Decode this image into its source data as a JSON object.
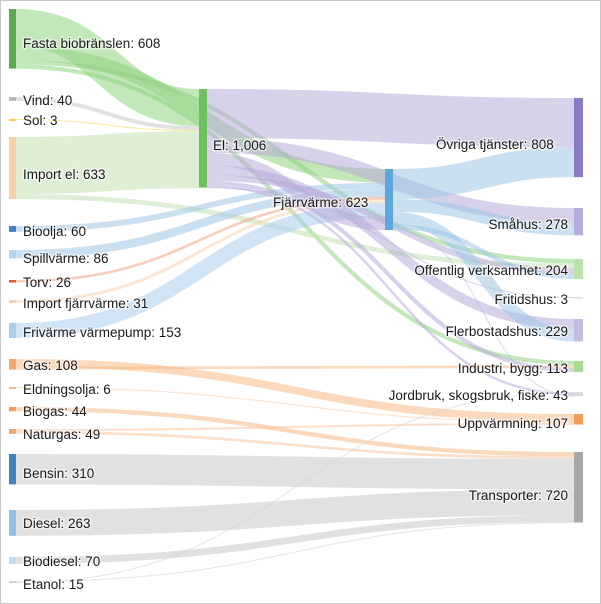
{
  "chart_data": {
    "type": "sankey",
    "units": "TWh",
    "nodes": [
      {
        "id": "fasta",
        "label": "Fasta biobränslen: 608",
        "value": 608,
        "color": "#5aaa4f",
        "flow_color": "#8fd37f"
      },
      {
        "id": "vind",
        "label": "Vind: 40",
        "value": 40,
        "color": "#b9b9b9",
        "flow_color": "#c8c8c8"
      },
      {
        "id": "sol",
        "label": "Sol: 3",
        "value": 3,
        "color": "#f6d23c",
        "flow_color": "#f6d23c"
      },
      {
        "id": "importel",
        "label": "Import el: 633",
        "value": 633,
        "color": "#f8cfa6",
        "flow_color": "#c3e2b5"
      },
      {
        "id": "bioolja",
        "label": "Bioolja: 60",
        "value": 60,
        "color": "#3f84c2",
        "flow_color": "#9ec6e6"
      },
      {
        "id": "spill",
        "label": "Spillvärme: 86",
        "value": 86,
        "color": "#b4d3ee",
        "flow_color": "#9ec6e6"
      },
      {
        "id": "torv",
        "label": "Torv: 26",
        "value": 26,
        "color": "#e25b2c",
        "flow_color": "#f2a27f"
      },
      {
        "id": "importfj",
        "label": "Import fjärrvärme: 31",
        "value": 31,
        "color": "#f8d4ae",
        "flow_color": "#f8d4ae"
      },
      {
        "id": "friv",
        "label": "Frivärme värmepump: 153",
        "value": 153,
        "color": "#a9cdec",
        "flow_color": "#a9cdec"
      },
      {
        "id": "gas",
        "label": "Gas: 108",
        "value": 108,
        "color": "#f4a86c",
        "flow_color": "#f7b987"
      },
      {
        "id": "eldning",
        "label": "Eldningsolja: 6",
        "value": 6,
        "color": "#f4b98a",
        "flow_color": "#f7c9a2"
      },
      {
        "id": "biogas",
        "label": "Biogas: 44",
        "value": 44,
        "color": "#ee9f66",
        "flow_color": "#f7b987"
      },
      {
        "id": "naturgas",
        "label": "Naturgas: 49",
        "value": 49,
        "color": "#f0a56e",
        "flow_color": "#f7c4a0"
      },
      {
        "id": "bensin",
        "label": "Bensin: 310",
        "value": 310,
        "color": "#3f84c2",
        "flow_color": "#c9c9c9"
      },
      {
        "id": "diesel",
        "label": "Diesel: 263",
        "value": 263,
        "color": "#8ec0e8",
        "flow_color": "#c9c9c9"
      },
      {
        "id": "biodiesel",
        "label": "Biodiesel: 70",
        "value": 70,
        "color": "#c4dbf0",
        "flow_color": "#c9c9c9"
      },
      {
        "id": "etanol",
        "label": "Etanol: 15",
        "value": 15,
        "color": "#cfcfcf",
        "flow_color": "#cfcfcf"
      },
      {
        "id": "el",
        "label": "El: 1,006",
        "value": 1006,
        "color": "#6cc05e",
        "flow_color": "#b8abd9"
      },
      {
        "id": "fjarr",
        "label": "Fjärrvärme: 623",
        "value": 623,
        "color": "#5fa7da",
        "flow_color": "#9ec6e6"
      },
      {
        "id": "ovriga",
        "label": "Övriga tjänster: 808",
        "value": 808,
        "color": "#8a7ac6",
        "flow_color": ""
      },
      {
        "id": "smahus",
        "label": "Småhus: 278",
        "value": 278,
        "color": "#b7abdc",
        "flow_color": ""
      },
      {
        "id": "offentlig",
        "label": "Offentlig verksamhet: 204",
        "value": 204,
        "color": "#b9e3a8",
        "flow_color": ""
      },
      {
        "id": "fritid",
        "label": "Fritidshus: 3",
        "value": 3,
        "color": "#e6e1f3",
        "flow_color": ""
      },
      {
        "id": "flerbo",
        "label": "Flerbostadshus: 229",
        "value": 229,
        "color": "#c4bbe2",
        "flow_color": ""
      },
      {
        "id": "industri",
        "label": "Industri, bygg: 113",
        "value": 113,
        "color": "#a6dc8f",
        "flow_color": ""
      },
      {
        "id": "jordbruk",
        "label": "Jordbruk, skogsbruk, fiske: 43",
        "value": 43,
        "color": "#dcdcdc",
        "flow_color": ""
      },
      {
        "id": "uppv",
        "label": "Uppvärmning: 107",
        "value": 107,
        "color": "#f39c55",
        "flow_color": ""
      },
      {
        "id": "transport",
        "label": "Transporter: 720",
        "value": 720,
        "color": "#a8a8a8",
        "flow_color": ""
      }
    ],
    "links": [
      {
        "source": "fasta",
        "target": "el",
        "value": 380
      },
      {
        "source": "fasta",
        "target": "fjarr",
        "value": 140
      },
      {
        "source": "fasta",
        "target": "offentlig",
        "value": 45
      },
      {
        "source": "fasta",
        "target": "industri",
        "value": 43
      },
      {
        "source": "vind",
        "target": "el",
        "value": 40
      },
      {
        "source": "sol",
        "target": "el",
        "value": 3
      },
      {
        "source": "importel",
        "target": "el",
        "value": 583
      },
      {
        "source": "importel",
        "target": "offentlig",
        "value": 50
      },
      {
        "source": "bioolja",
        "target": "fjarr",
        "value": 60
      },
      {
        "source": "spill",
        "target": "fjarr",
        "value": 86
      },
      {
        "source": "torv",
        "target": "fjarr",
        "value": 26
      },
      {
        "source": "importfj",
        "target": "fjarr",
        "value": 31
      },
      {
        "source": "friv",
        "target": "fjarr",
        "value": 153
      },
      {
        "source": "gas",
        "target": "uppv",
        "value": 80
      },
      {
        "source": "gas",
        "target": "industri",
        "value": 28
      },
      {
        "source": "eldning",
        "target": "uppv",
        "value": 6
      },
      {
        "source": "biogas",
        "target": "transport",
        "value": 44
      },
      {
        "source": "naturgas",
        "target": "uppv",
        "value": 21
      },
      {
        "source": "naturgas",
        "target": "transport",
        "value": 28
      },
      {
        "source": "bensin",
        "target": "transport",
        "value": 310
      },
      {
        "source": "diesel",
        "target": "transport",
        "value": 263
      },
      {
        "source": "biodiesel",
        "target": "transport",
        "value": 70
      },
      {
        "source": "etanol",
        "target": "transport",
        "value": 5
      },
      {
        "source": "etanol",
        "target": "jordbruk",
        "value": 10
      },
      {
        "source": "el",
        "target": "ovriga",
        "value": 500
      },
      {
        "source": "el",
        "target": "smahus",
        "value": 150
      },
      {
        "source": "el",
        "target": "fjarr",
        "value": 127
      },
      {
        "source": "el",
        "target": "flerbo",
        "value": 99
      },
      {
        "source": "el",
        "target": "offentlig",
        "value": 60
      },
      {
        "source": "el",
        "target": "industri",
        "value": 42
      },
      {
        "source": "el",
        "target": "jordbruk",
        "value": 25
      },
      {
        "source": "el",
        "target": "fritid",
        "value": 3
      },
      {
        "source": "fjarr",
        "target": "ovriga",
        "value": 308
      },
      {
        "source": "fjarr",
        "target": "smahus",
        "value": 128
      },
      {
        "source": "fjarr",
        "target": "flerbo",
        "value": 130
      },
      {
        "source": "fjarr",
        "target": "offentlig",
        "value": 49
      },
      {
        "source": "fjarr",
        "target": "jordbruk",
        "value": 8
      }
    ]
  }
}
